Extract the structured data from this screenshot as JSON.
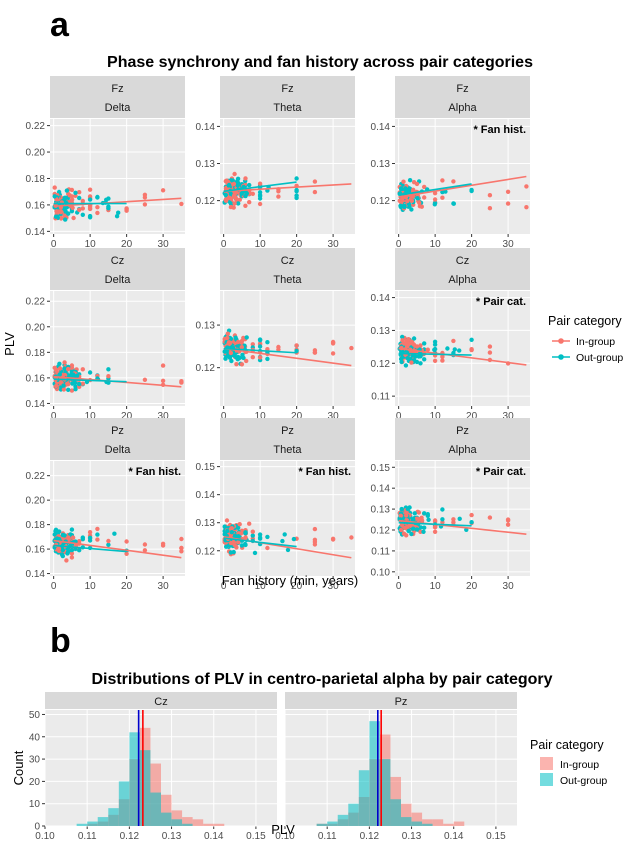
{
  "panel_a_label": "a",
  "panel_b_label": "b",
  "colors": {
    "in_group": "#F8766D",
    "out_group": "#00BFC4",
    "panel_bg": "#EBEBEB",
    "strip_bg": "#D9D9D9",
    "grid": "#FFFFFF",
    "mean_in": "#FF0000",
    "mean_out": "#0000CC"
  },
  "chart_data": [
    {
      "type": "scatter",
      "title": "Phase synchrony and fan history across pair categories",
      "xlabel": "Fan history (min, years)",
      "ylabel": "PLV",
      "x_ticks": [
        0,
        10,
        20,
        30
      ],
      "xlim": [
        -1,
        36
      ],
      "legend": {
        "title": "Pair category",
        "entries": [
          "In-group",
          "Out-group"
        ],
        "placement": "right"
      },
      "facets": [
        {
          "row": "Fz",
          "col": "Delta",
          "annotation": "",
          "ylim": [
            0.138,
            0.225
          ],
          "y_ticks": [
            0.14,
            0.16,
            0.18,
            0.2,
            0.22
          ],
          "y_tick_labels": [
            "0.14",
            "0.16",
            "0.18",
            "0.20",
            "0.22"
          ],
          "in_fit": [
            [
              0,
              0.159
            ],
            [
              35,
              0.165
            ]
          ],
          "out_fit": [
            [
              0,
              0.161
            ],
            [
              20,
              0.161
            ]
          ]
        },
        {
          "row": "Fz",
          "col": "Theta",
          "annotation": "",
          "ylim": [
            0.111,
            0.142
          ],
          "y_ticks": [
            0.12,
            0.13,
            0.14
          ],
          "y_tick_labels": [
            "0.12",
            "0.13",
            "0.14"
          ],
          "in_fit": [
            [
              0,
              0.1225
            ],
            [
              35,
              0.1245
            ]
          ],
          "out_fit": [
            [
              0,
              0.1225
            ],
            [
              20,
              0.125
            ]
          ]
        },
        {
          "row": "Fz",
          "col": "Alpha",
          "annotation": "* Fan hist.",
          "ylim": [
            0.111,
            0.142
          ],
          "y_ticks": [
            0.12,
            0.13,
            0.14
          ],
          "y_tick_labels": [
            "0.12",
            "0.13",
            "0.14"
          ],
          "in_fit": [
            [
              0,
              0.121
            ],
            [
              35,
              0.1265
            ]
          ],
          "out_fit": [
            [
              0,
              0.1215
            ],
            [
              20,
              0.1245
            ]
          ]
        },
        {
          "row": "Cz",
          "col": "Delta",
          "annotation": "",
          "ylim": [
            0.138,
            0.228
          ],
          "y_ticks": [
            0.14,
            0.16,
            0.18,
            0.2,
            0.22
          ],
          "y_tick_labels": [
            "0.14",
            "0.16",
            "0.18",
            "0.20",
            "0.22"
          ],
          "in_fit": [
            [
              0,
              0.161
            ],
            [
              35,
              0.153
            ]
          ],
          "out_fit": [
            [
              0,
              0.159
            ],
            [
              20,
              0.157
            ]
          ]
        },
        {
          "row": "Cz",
          "col": "Theta",
          "annotation": "",
          "ylim": [
            0.111,
            0.138
          ],
          "y_ticks": [
            0.12,
            0.13
          ],
          "y_tick_labels": [
            "0.12",
            "0.13"
          ],
          "in_fit": [
            [
              0,
              0.1245
            ],
            [
              35,
              0.1205
            ]
          ],
          "out_fit": [
            [
              0,
              0.1245
            ],
            [
              20,
              0.1235
            ]
          ]
        },
        {
          "row": "Cz",
          "col": "Alpha",
          "annotation": "* Pair cat.",
          "ylim": [
            0.107,
            0.142
          ],
          "y_ticks": [
            0.11,
            0.12,
            0.13,
            0.14
          ],
          "y_tick_labels": [
            "0.11",
            "0.12",
            "0.13",
            "0.14"
          ],
          "in_fit": [
            [
              0,
              0.1245
            ],
            [
              35,
              0.1195
            ]
          ],
          "out_fit": [
            [
              0,
              0.123
            ],
            [
              20,
              0.1225
            ]
          ]
        },
        {
          "row": "Pz",
          "col": "Delta",
          "annotation": "* Fan hist.",
          "ylim": [
            0.138,
            0.232
          ],
          "y_ticks": [
            0.14,
            0.16,
            0.18,
            0.2,
            0.22
          ],
          "y_tick_labels": [
            "0.14",
            "0.16",
            "0.18",
            "0.20",
            "0.22"
          ],
          "in_fit": [
            [
              0,
              0.167
            ],
            [
              35,
              0.153
            ]
          ],
          "out_fit": [
            [
              0,
              0.163
            ],
            [
              20,
              0.158
            ]
          ]
        },
        {
          "row": "Pz",
          "col": "Theta",
          "annotation": "* Fan hist.",
          "ylim": [
            0.111,
            0.152
          ],
          "y_ticks": [
            0.12,
            0.13,
            0.14,
            0.15
          ],
          "y_tick_labels": [
            "0.12",
            "0.13",
            "0.14",
            "0.15"
          ],
          "in_fit": [
            [
              0,
              0.125
            ],
            [
              35,
              0.1175
            ]
          ],
          "out_fit": [
            [
              0,
              0.1245
            ],
            [
              20,
              0.1215
            ]
          ]
        },
        {
          "row": "Pz",
          "col": "Alpha",
          "annotation": "* Pair cat.",
          "ylim": [
            0.098,
            0.153
          ],
          "y_ticks": [
            0.1,
            0.11,
            0.12,
            0.13,
            0.14,
            0.15
          ],
          "y_tick_labels": [
            "0.10",
            "0.11",
            "0.12",
            "0.13",
            "0.14",
            "0.15"
          ],
          "in_fit": [
            [
              0,
              0.1245
            ],
            [
              35,
              0.118
            ]
          ],
          "out_fit": [
            [
              0,
              0.1235
            ],
            [
              20,
              0.122
            ]
          ]
        }
      ]
    },
    {
      "type": "bar",
      "title": "Distributions of PLV in centro-parietal alpha by pair category",
      "xlabel": "PLV",
      "ylabel": "Count",
      "x_ticks": [
        0.1,
        0.11,
        0.12,
        0.13,
        0.14,
        0.15
      ],
      "x_tick_labels": [
        "0.10",
        "0.11",
        "0.12",
        "0.13",
        "0.14",
        "0.15"
      ],
      "y_ticks": [
        0,
        10,
        20,
        30,
        40,
        50
      ],
      "xlim": [
        0.1,
        0.155
      ],
      "ylim": [
        0,
        52
      ],
      "bin_width": 0.0025,
      "legend": {
        "title": "Pair category",
        "entries": [
          "In-group",
          "Out-group"
        ],
        "placement": "right"
      },
      "facets": [
        {
          "name": "Cz",
          "bin_starts": [
            0.1075,
            0.11,
            0.1125,
            0.115,
            0.1175,
            0.12,
            0.1225,
            0.125,
            0.1275,
            0.13,
            0.1325,
            0.135,
            0.1375,
            0.14
          ],
          "in_group": [
            0,
            1,
            2,
            5,
            12,
            30,
            44,
            28,
            14,
            7,
            4,
            3,
            1,
            1
          ],
          "out_group": [
            1,
            2,
            4,
            8,
            20,
            42,
            34,
            15,
            6,
            3,
            1,
            0,
            0,
            0
          ],
          "mean_in": 0.1232,
          "mean_out": 0.1222
        },
        {
          "name": "Pz",
          "bin_starts": [
            0.1075,
            0.11,
            0.1125,
            0.115,
            0.1175,
            0.12,
            0.1225,
            0.125,
            0.1275,
            0.13,
            0.1325,
            0.135,
            0.1375,
            0.14
          ],
          "in_group": [
            1,
            1,
            3,
            6,
            13,
            30,
            41,
            22,
            10,
            6,
            3,
            3,
            1,
            2
          ],
          "out_group": [
            1,
            2,
            5,
            10,
            25,
            47,
            30,
            12,
            4,
            2,
            1,
            0,
            0,
            0
          ],
          "mean_in": 0.1228,
          "mean_out": 0.122
        }
      ]
    }
  ]
}
